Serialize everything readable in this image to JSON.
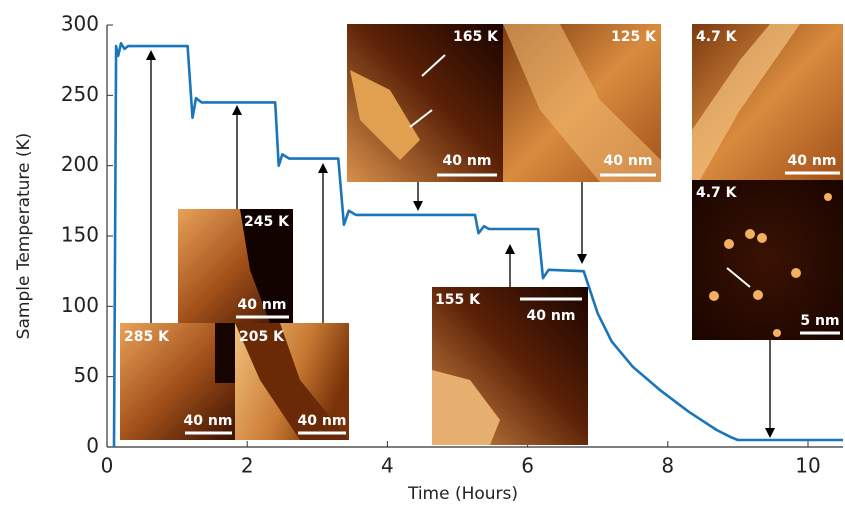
{
  "chart_data": {
    "type": "line",
    "xlabel": "Time (Hours)",
    "ylabel": "Sample Temperature (K)",
    "xlim": [
      0,
      10.5
    ],
    "ylim": [
      0,
      300
    ],
    "xticks": [
      0,
      2,
      4,
      6,
      8,
      10
    ],
    "yticks": [
      0,
      50,
      100,
      150,
      200,
      250,
      300
    ],
    "x": [
      0.1,
      0.13,
      0.16,
      0.2,
      0.25,
      0.3,
      1.15,
      1.22,
      1.27,
      1.35,
      2.4,
      2.45,
      2.5,
      2.6,
      3.3,
      3.38,
      3.45,
      3.55,
      5.25,
      5.3,
      5.38,
      5.45,
      6.15,
      6.22,
      6.3,
      6.8,
      6.9,
      7.0,
      7.2,
      7.5,
      7.9,
      8.3,
      8.7,
      8.9,
      9.0,
      10.5
    ],
    "series": [
      {
        "color": "#1b75bb",
        "values": [
          0,
          285,
          278,
          287,
          283,
          285,
          285,
          234,
          248,
          245,
          245,
          200,
          208,
          205,
          205,
          158,
          168,
          165,
          165,
          152,
          157,
          155,
          155,
          120,
          126,
          125,
          110,
          95,
          75,
          57,
          40,
          25,
          12,
          7,
          5,
          5
        ]
      }
    ],
    "insets": [
      {
        "temperature": "285 K",
        "scale": "40 nm"
      },
      {
        "temperature": "205 K",
        "scale": "40 nm"
      },
      {
        "temperature": "245 K",
        "scale": "40 nm"
      },
      {
        "temperature": "165 K",
        "scale": "40 nm"
      },
      {
        "temperature": "125 K",
        "scale": "40 nm"
      },
      {
        "temperature": "155 K",
        "scale": "40 nm"
      },
      {
        "temperature": "4.7 K",
        "scale": "40 nm"
      },
      {
        "temperature": "4.7 K",
        "scale": "5 nm"
      }
    ]
  }
}
